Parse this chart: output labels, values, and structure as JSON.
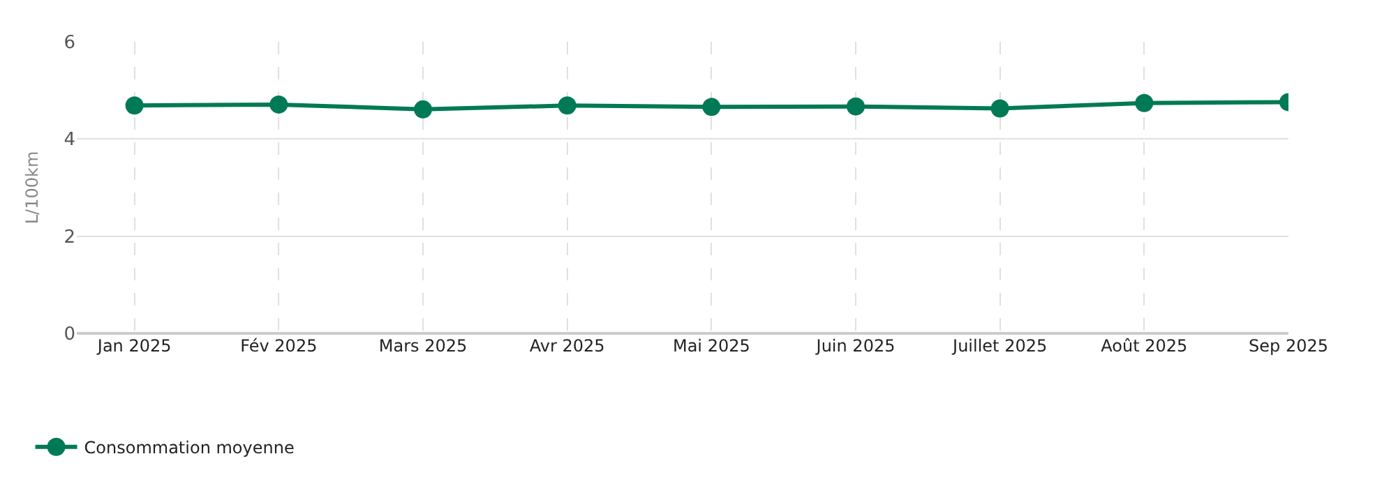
{
  "chart_data": {
    "type": "line",
    "ylabel": "L/100km",
    "categories": [
      "Jan 2025",
      "Fév 2025",
      "Mars 2025",
      "Avr 2025",
      "Mai 2025",
      "Juin 2025",
      "Juillet 2025",
      "Août 2025",
      "Sep 2025"
    ],
    "series": [
      {
        "name": "Consommation moyenne",
        "color": "#007a55",
        "values": [
          4.69,
          4.71,
          4.61,
          4.69,
          4.66,
          4.67,
          4.63,
          4.74,
          4.76
        ]
      }
    ],
    "ylim": [
      0,
      6
    ],
    "yticks": [
      0,
      2,
      4,
      6
    ],
    "grid": true,
    "legend": "bottom left",
    "marker": "circle",
    "line_style": "solid"
  }
}
